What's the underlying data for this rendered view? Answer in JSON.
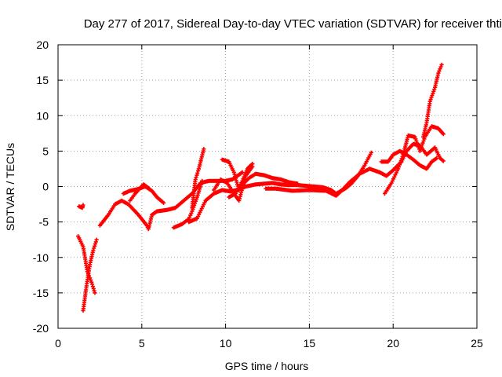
{
  "chart_data": {
    "type": "scatter",
    "title": "Day 277 of 2017, Sidereal Day-to-day VTEC variation (SDTVAR) for receiver thti",
    "xlabel": "GPS time / hours",
    "ylabel": "SDTVAR / TECUs",
    "xlim": [
      0,
      25
    ],
    "ylim": [
      -20,
      20
    ],
    "xticks": [
      0,
      5,
      10,
      15,
      20,
      25
    ],
    "yticks": [
      -20,
      -15,
      -10,
      -5,
      0,
      5,
      10,
      15,
      20
    ],
    "grid": true,
    "marker": "+",
    "series_color": "#ff0000",
    "tracks": [
      [
        [
          1.25,
          -2.8
        ],
        [
          1.45,
          -3.0
        ],
        [
          1.5,
          -2.6
        ]
      ],
      [
        [
          1.2,
          -7.0
        ],
        [
          1.5,
          -8.5
        ],
        [
          1.75,
          -12.0
        ],
        [
          2.0,
          -13.5
        ],
        [
          2.2,
          -15.0
        ]
      ],
      [
        [
          1.5,
          -17.5
        ],
        [
          1.7,
          -14.0
        ],
        [
          1.9,
          -11.0
        ],
        [
          2.1,
          -9.0
        ],
        [
          2.3,
          -7.5
        ]
      ],
      [
        [
          2.5,
          -5.5
        ],
        [
          3.0,
          -4.0
        ],
        [
          3.4,
          -2.5
        ],
        [
          3.8,
          -2.0
        ],
        [
          4.2,
          -2.5
        ],
        [
          4.8,
          -4.0
        ],
        [
          5.3,
          -5.5
        ],
        [
          5.4,
          -6.0
        ],
        [
          5.6,
          -4.0
        ],
        [
          5.9,
          -3.5
        ],
        [
          6.5,
          -3.3
        ],
        [
          7.0,
          -3.0
        ],
        [
          7.5,
          -2.0
        ],
        [
          8.0,
          -1.0
        ],
        [
          8.5,
          0.5
        ],
        [
          9.0,
          0.8
        ],
        [
          9.5,
          0.8
        ],
        [
          10.0,
          0.8
        ],
        [
          10.4,
          1.0
        ],
        [
          10.7,
          1.5
        ],
        [
          11.0,
          2.0
        ]
      ],
      [
        [
          3.9,
          -1.0
        ],
        [
          4.3,
          -0.6
        ],
        [
          4.7,
          -0.4
        ],
        [
          5.2,
          0.0
        ],
        [
          5.6,
          -0.6
        ],
        [
          5.9,
          -1.5
        ],
        [
          6.3,
          -2.3
        ]
      ],
      [
        [
          4.3,
          -2.0
        ],
        [
          4.6,
          -1.0
        ],
        [
          5.1,
          0.3
        ],
        [
          5.4,
          -0.2
        ]
      ],
      [
        [
          6.9,
          -5.8
        ],
        [
          7.4,
          -5.3
        ],
        [
          7.8,
          -4.6
        ],
        [
          8.0,
          -3.5
        ],
        [
          8.3,
          -1.5
        ],
        [
          8.6,
          0.8
        ]
      ],
      [
        [
          8.0,
          -3.0
        ],
        [
          8.2,
          1.0
        ],
        [
          8.4,
          2.5
        ],
        [
          8.7,
          5.3
        ]
      ],
      [
        [
          7.8,
          -5.0
        ],
        [
          8.3,
          -4.5
        ],
        [
          8.8,
          -2.0
        ],
        [
          9.3,
          -1.0
        ],
        [
          9.8,
          -0.5
        ],
        [
          10.3,
          -0.7
        ],
        [
          10.8,
          -0.4
        ],
        [
          11.2,
          0.0
        ],
        [
          11.8,
          0.3
        ],
        [
          12.3,
          0.4
        ],
        [
          12.8,
          0.5
        ],
        [
          13.3,
          0.3
        ],
        [
          13.8,
          0.2
        ],
        [
          14.3,
          0.2
        ],
        [
          14.8,
          0.1
        ],
        [
          15.3,
          0.0
        ],
        [
          15.8,
          -0.1
        ],
        [
          16.3,
          -0.5
        ],
        [
          16.6,
          -1.0
        ],
        [
          16.9,
          -0.6
        ],
        [
          17.2,
          -0.2
        ],
        [
          17.5,
          0.4
        ],
        [
          17.9,
          1.5
        ],
        [
          18.3,
          3.0
        ],
        [
          18.7,
          4.8
        ]
      ],
      [
        [
          9.8,
          3.8
        ],
        [
          10.2,
          3.5
        ],
        [
          10.5,
          2.0
        ],
        [
          10.8,
          -0.5
        ],
        [
          11.1,
          0.5
        ],
        [
          11.4,
          1.2
        ],
        [
          11.8,
          1.8
        ],
        [
          12.3,
          1.6
        ],
        [
          12.8,
          1.2
        ],
        [
          13.3,
          1.0
        ],
        [
          13.8,
          0.6
        ],
        [
          14.3,
          0.4
        ]
      ],
      [
        [
          10.2,
          -1.5
        ],
        [
          10.6,
          -1.0
        ],
        [
          11.0,
          0.8
        ],
        [
          11.3,
          2.5
        ],
        [
          11.6,
          3.2
        ]
      ],
      [
        [
          9.3,
          -0.5
        ],
        [
          9.7,
          1.0
        ],
        [
          10.1,
          0.5
        ],
        [
          10.5,
          -1.0
        ],
        [
          10.8,
          -2.0
        ],
        [
          11.2,
          1.5
        ],
        [
          11.6,
          2.8
        ]
      ],
      [
        [
          12.4,
          -0.3
        ],
        [
          13.0,
          -0.3
        ],
        [
          14.0,
          -0.6
        ],
        [
          15.0,
          -0.5
        ],
        [
          16.0,
          -0.6
        ],
        [
          16.6,
          -1.3
        ],
        [
          17.0,
          -0.4
        ],
        [
          17.4,
          0.6
        ],
        [
          18.0,
          1.8
        ],
        [
          18.6,
          2.5
        ],
        [
          19.2,
          2.0
        ],
        [
          19.6,
          1.5
        ],
        [
          20.0,
          2.3
        ],
        [
          20.5,
          3.5
        ],
        [
          20.8,
          5.0
        ],
        [
          21.2,
          6.0
        ],
        [
          21.6,
          5.8
        ],
        [
          22.0,
          4.5
        ],
        [
          22.5,
          5.5
        ],
        [
          22.8,
          4.0
        ],
        [
          23.0,
          3.6
        ]
      ],
      [
        [
          19.5,
          -1.0
        ],
        [
          19.9,
          0.5
        ],
        [
          20.3,
          2.5
        ],
        [
          20.6,
          4.5
        ],
        [
          20.9,
          7.2
        ],
        [
          21.3,
          7.0
        ],
        [
          21.6,
          5.0
        ],
        [
          21.9,
          7.0
        ],
        [
          22.3,
          8.5
        ],
        [
          22.7,
          8.2
        ],
        [
          23.0,
          7.4
        ]
      ],
      [
        [
          19.3,
          3.5
        ],
        [
          19.7,
          3.5
        ],
        [
          20.0,
          4.5
        ],
        [
          20.4,
          5.0
        ],
        [
          20.8,
          4.5
        ],
        [
          21.2,
          3.8
        ],
        [
          21.6,
          3.0
        ],
        [
          22.0,
          2.5
        ],
        [
          22.3,
          3.5
        ],
        [
          22.6,
          4.0
        ]
      ],
      [
        [
          21.8,
          7.0
        ],
        [
          22.0,
          9.0
        ],
        [
          22.2,
          12.0
        ],
        [
          22.5,
          14.0
        ],
        [
          22.7,
          16.0
        ],
        [
          22.9,
          17.2
        ]
      ]
    ]
  }
}
